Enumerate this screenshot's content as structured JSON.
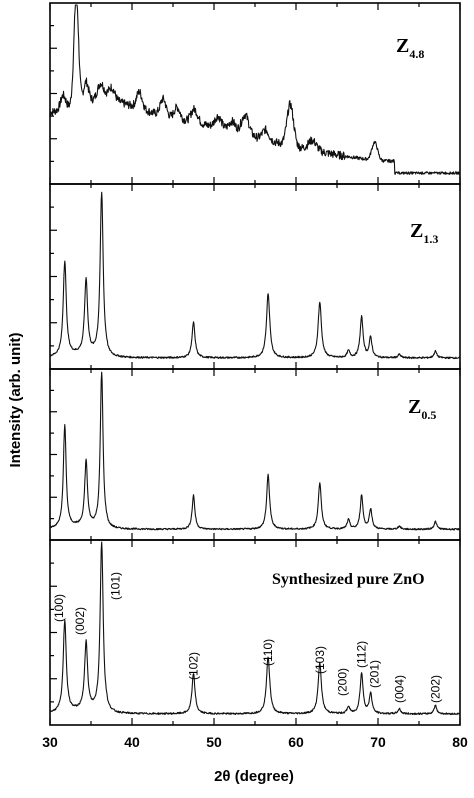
{
  "chart_data": {
    "type": "line",
    "xlabel": "2θ  (degree)",
    "ylabel": "Intensity (arb. unit)",
    "xlim": [
      30,
      80
    ],
    "xticks": [
      30,
      40,
      50,
      60,
      70,
      80
    ],
    "grid": false,
    "panels": [
      {
        "name_main": "Z",
        "name_sub": "4.8",
        "kind": "amorphous",
        "baseline": 0.22,
        "ylim": [
          0,
          1
        ],
        "peaks": [
          [
            31.6,
            0.08,
            0.3
          ],
          [
            33.2,
            0.66,
            0.28
          ],
          [
            34.4,
            0.12,
            0.3
          ],
          [
            36.2,
            0.1,
            0.4
          ],
          [
            37.5,
            0.08,
            0.4
          ],
          [
            40.9,
            0.1,
            0.35
          ],
          [
            43.8,
            0.1,
            0.35
          ],
          [
            45.5,
            0.07,
            0.35
          ],
          [
            47.6,
            0.08,
            0.4
          ],
          [
            50.5,
            0.07,
            0.4
          ],
          [
            52.2,
            0.06,
            0.4
          ],
          [
            53.8,
            0.12,
            0.45
          ],
          [
            56.3,
            0.06,
            0.4
          ],
          [
            59.3,
            0.25,
            0.4
          ],
          [
            62.0,
            0.06,
            0.5
          ],
          [
            69.6,
            0.11,
            0.35
          ]
        ],
        "broad": [
          [
            44,
            0.12,
            10
          ],
          [
            36,
            0.1,
            4
          ]
        ]
      },
      {
        "name_main": "Z",
        "name_sub": "1.3",
        "kind": "crystalline",
        "ylim": [
          0,
          1
        ],
        "peaks": [
          [
            31.8,
            0.56,
            0.22
          ],
          [
            34.4,
            0.44,
            0.22
          ],
          [
            36.3,
            0.96,
            0.22
          ],
          [
            47.5,
            0.21,
            0.22
          ],
          [
            56.6,
            0.38,
            0.24
          ],
          [
            62.9,
            0.33,
            0.24
          ],
          [
            66.4,
            0.04,
            0.2
          ],
          [
            68.0,
            0.24,
            0.22
          ],
          [
            69.1,
            0.12,
            0.2
          ],
          [
            72.6,
            0.02,
            0.2
          ],
          [
            77.0,
            0.04,
            0.2
          ]
        ]
      },
      {
        "name_main": "Z",
        "name_sub": "0.5",
        "kind": "crystalline",
        "ylim": [
          0,
          1
        ],
        "peaks": [
          [
            31.8,
            0.66,
            0.2
          ],
          [
            34.4,
            0.42,
            0.2
          ],
          [
            36.3,
            1.0,
            0.2
          ],
          [
            47.5,
            0.22,
            0.2
          ],
          [
            56.6,
            0.35,
            0.22
          ],
          [
            62.9,
            0.3,
            0.22
          ],
          [
            66.4,
            0.06,
            0.2
          ],
          [
            68.0,
            0.22,
            0.2
          ],
          [
            69.1,
            0.13,
            0.2
          ],
          [
            72.6,
            0.02,
            0.2
          ],
          [
            77.0,
            0.05,
            0.2
          ]
        ]
      },
      {
        "name_main": "Synthesized pure ZnO",
        "name_sub": "",
        "kind": "crystalline",
        "ylim": [
          0,
          1
        ],
        "peaks": [
          [
            31.8,
            0.54,
            0.22
          ],
          [
            34.4,
            0.4,
            0.22
          ],
          [
            36.3,
            1.0,
            0.22
          ],
          [
            47.5,
            0.24,
            0.22
          ],
          [
            56.6,
            0.34,
            0.24
          ],
          [
            62.9,
            0.3,
            0.24
          ],
          [
            66.4,
            0.04,
            0.2
          ],
          [
            68.0,
            0.24,
            0.22
          ],
          [
            69.1,
            0.12,
            0.2
          ],
          [
            72.6,
            0.03,
            0.2
          ],
          [
            77.0,
            0.05,
            0.2
          ]
        ],
        "annotations": [
          {
            "label": "(100)",
            "x": 31.8
          },
          {
            "label": "(002)",
            "x": 34.4
          },
          {
            "label": "(101)",
            "x": 36.3
          },
          {
            "label": "(102)",
            "x": 47.5
          },
          {
            "label": "(110)",
            "x": 56.6
          },
          {
            "label": "(103)",
            "x": 62.9
          },
          {
            "label": "(200)",
            "x": 66.4
          },
          {
            "label": "(112)",
            "x": 68.0
          },
          {
            "label": "(201)",
            "x": 69.1
          },
          {
            "label": "(004)",
            "x": 72.6
          },
          {
            "label": "(202)",
            "x": 77.0
          }
        ]
      }
    ]
  }
}
